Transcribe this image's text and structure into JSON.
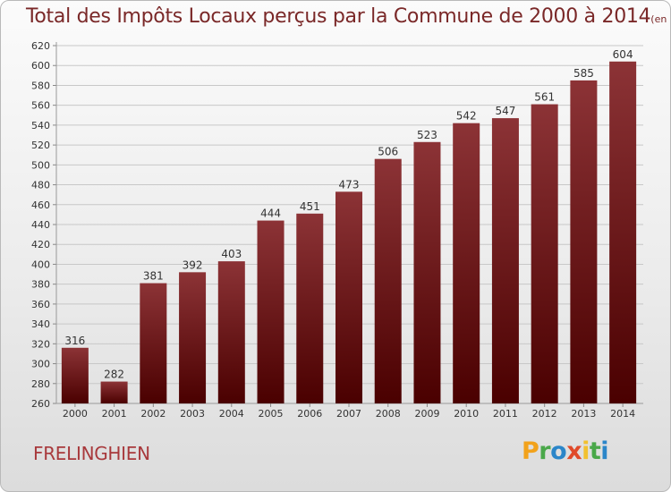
{
  "title": "Total des Impôts Locaux perçus par la Commune de 2000 à 2014",
  "subtitle": "(en milliers d'€)",
  "commune": "FRELINGHIEN",
  "logo": {
    "letters": [
      "P",
      "r",
      "o",
      "x",
      "i",
      "t",
      "i"
    ],
    "colors": [
      "#f2a21b",
      "#4aa84a",
      "#2b86c9",
      "#e04a2a",
      "#f2c12e",
      "#4aa84a",
      "#2b86c9"
    ]
  },
  "colors": {
    "bar_top": "#8c3336",
    "bar_bottom": "#4a0000",
    "title": "#7a2828",
    "commune": "#a8393c"
  },
  "chart_data": {
    "type": "bar",
    "title": "Total des Impôts Locaux perçus par la Commune de 2000 à 2014",
    "subtitle": "(en milliers d'€)",
    "categories": [
      "2000",
      "2001",
      "2002",
      "2003",
      "2004",
      "2005",
      "2006",
      "2007",
      "2008",
      "2009",
      "2010",
      "2011",
      "2012",
      "2013",
      "2014"
    ],
    "values": [
      316,
      282,
      381,
      392,
      403,
      444,
      451,
      473,
      506,
      523,
      542,
      547,
      561,
      585,
      604
    ],
    "ylim": [
      260,
      620
    ],
    "yticks": [
      260,
      280,
      300,
      320,
      340,
      360,
      380,
      400,
      420,
      440,
      460,
      480,
      500,
      520,
      540,
      560,
      580,
      600,
      620
    ],
    "grid": true,
    "xlabel": "",
    "ylabel": ""
  }
}
